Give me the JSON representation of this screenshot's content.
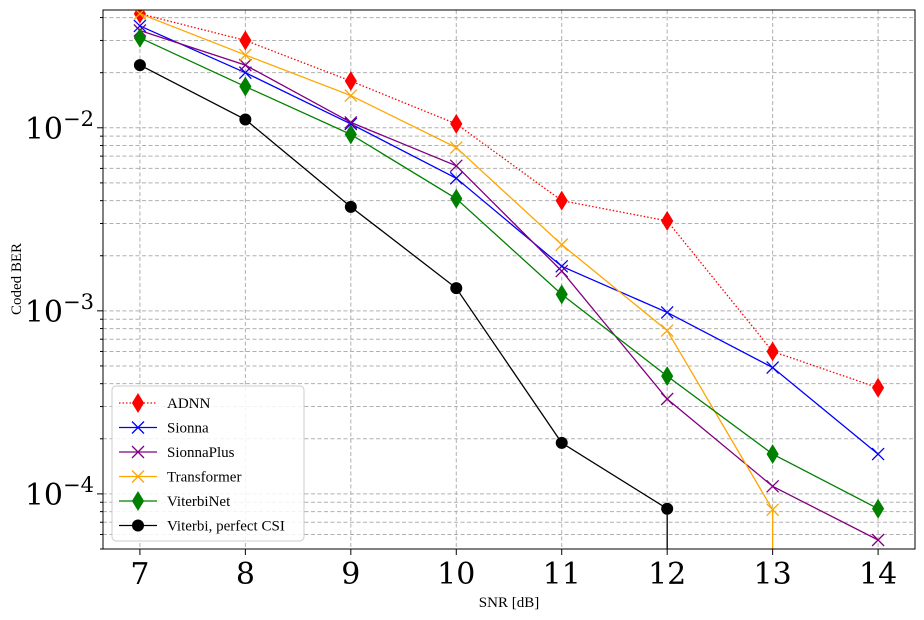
{
  "chart_data": {
    "type": "line",
    "title": "",
    "xlabel": "SNR [dB]",
    "ylabel": "Coded BER",
    "yscale": "log",
    "grid": "both-major-and-minor-dashed",
    "legend_position": "lower-left",
    "xlim": [
      6.65,
      14.35
    ],
    "ylim": [
      5e-05,
      0.044
    ],
    "x_ticks": [
      7,
      8,
      9,
      10,
      11,
      12,
      13,
      14
    ],
    "y_ticks": [
      {
        "value": 0.0001,
        "base": "10",
        "exp": "−4"
      },
      {
        "value": 0.001,
        "base": "10",
        "exp": "−3"
      },
      {
        "value": 0.01,
        "base": "10",
        "exp": "−2"
      }
    ],
    "series": [
      {
        "name": "ADNN",
        "color": "#ff0000",
        "marker": "thin-diamond",
        "line": "dotted",
        "x": [
          7,
          8,
          9,
          10,
          11,
          12,
          13,
          14
        ],
        "y": [
          0.042,
          0.03,
          0.018,
          0.0105,
          0.004,
          0.0031,
          0.0006,
          0.00038
        ]
      },
      {
        "name": "Sionna",
        "color": "#0000ff",
        "marker": "x",
        "line": "solid",
        "x": [
          7,
          8,
          9,
          10,
          11,
          12,
          13,
          14
        ],
        "y": [
          0.036,
          0.02,
          0.0105,
          0.0053,
          0.00175,
          0.00098,
          0.00049,
          0.000165
        ]
      },
      {
        "name": "SionnaPlus",
        "color": "#800080",
        "marker": "x",
        "line": "solid",
        "x": [
          7,
          8,
          9,
          10,
          11,
          12,
          13,
          14
        ],
        "y": [
          0.034,
          0.022,
          0.0107,
          0.0062,
          0.00165,
          0.00033,
          0.00011,
          5.6e-05
        ]
      },
      {
        "name": "Transformer",
        "color": "#ffa500",
        "marker": "x",
        "line": "solid",
        "x": [
          7,
          8,
          9,
          10,
          11,
          12,
          13,
          13
        ],
        "y": [
          0.042,
          0.025,
          0.015,
          0.0078,
          0.0023,
          0.00078,
          8.2e-05,
          3e-05
        ]
      },
      {
        "name": "ViterbiNet",
        "color": "#008000",
        "marker": "thin-diamond",
        "line": "solid",
        "x": [
          7,
          8,
          9,
          10,
          11,
          12,
          13,
          14
        ],
        "y": [
          0.031,
          0.0168,
          0.0092,
          0.0041,
          0.00123,
          0.00044,
          0.000165,
          8.3e-05
        ]
      },
      {
        "name": "Viterbi, perfect CSI",
        "color": "#000000",
        "marker": "circle",
        "line": "solid",
        "x": [
          7,
          8,
          9,
          10,
          11,
          12,
          12
        ],
        "y": [
          0.022,
          0.0111,
          0.0037,
          0.00133,
          0.00019,
          8.3e-05,
          3e-05
        ]
      }
    ]
  }
}
